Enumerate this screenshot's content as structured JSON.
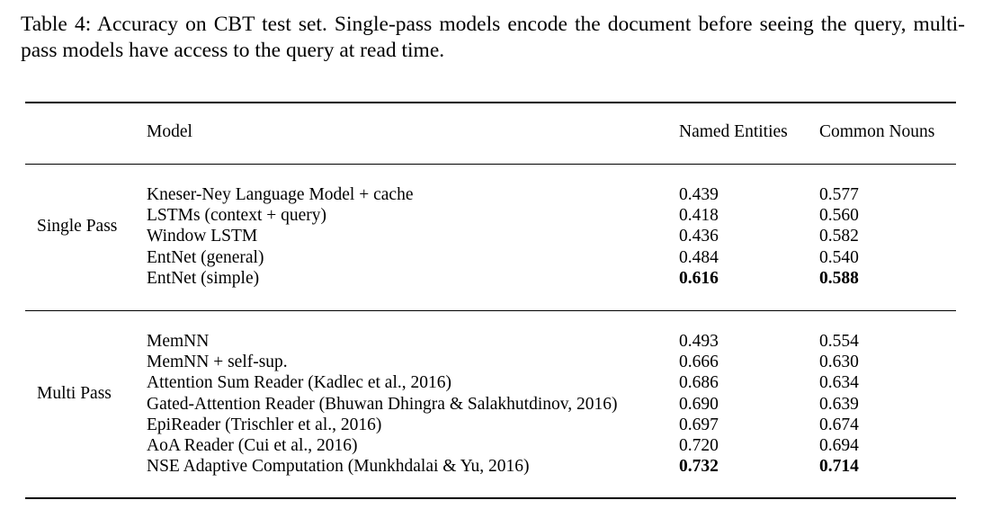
{
  "caption": "Table 4: Accuracy on CBT test set. Single-pass models encode the document before seeing the query, multi-pass models have access to the query at read time.",
  "table": {
    "headers": {
      "model": "Model",
      "named_entities": "Named Entities",
      "common_nouns": "Common Nouns"
    },
    "groups": [
      {
        "label": "Single Pass",
        "rows": [
          {
            "model": "Kneser-Ney Language Model + cache",
            "ne": "0.439",
            "cn": "0.577",
            "bold": false
          },
          {
            "model": "LSTMs (context + query)",
            "ne": "0.418",
            "cn": "0.560",
            "bold": false
          },
          {
            "model": "Window LSTM",
            "ne": "0.436",
            "cn": "0.582",
            "bold": false
          },
          {
            "model": "EntNet (general)",
            "ne": "0.484",
            "cn": "0.540",
            "bold": false
          },
          {
            "model": "EntNet (simple)",
            "ne": "0.616",
            "cn": "0.588",
            "bold": true
          }
        ]
      },
      {
        "label": "Multi Pass",
        "rows": [
          {
            "model": "MemNN",
            "ne": "0.493",
            "cn": "0.554",
            "bold": false
          },
          {
            "model": "MemNN + self-sup.",
            "ne": "0.666",
            "cn": "0.630",
            "bold": false
          },
          {
            "model": "Attention Sum Reader (Kadlec et al., 2016)",
            "ne": "0.686",
            "cn": "0.634",
            "bold": false
          },
          {
            "model": "Gated-Attention Reader (Bhuwan Dhingra & Salakhutdinov, 2016)",
            "ne": "0.690",
            "cn": "0.639",
            "bold": false
          },
          {
            "model": "EpiReader (Trischler et al., 2016)",
            "ne": "0.697",
            "cn": "0.674",
            "bold": false
          },
          {
            "model": "AoA Reader (Cui et al., 2016)",
            "ne": "0.720",
            "cn": "0.694",
            "bold": false
          },
          {
            "model": "NSE Adaptive Computation (Munkhdalai & Yu, 2016)",
            "ne": "0.732",
            "cn": "0.714",
            "bold": true
          }
        ]
      }
    ]
  }
}
